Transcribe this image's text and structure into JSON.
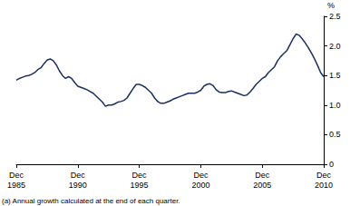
{
  "chart_data": {
    "type": "line",
    "ylabel": "%",
    "annotations": [
      "(a) Annual growth calculated at the end of each quarter."
    ],
    "categories": [
      "Dec 1985",
      null,
      null,
      null,
      null,
      null,
      null,
      null,
      null,
      null,
      null,
      null,
      null,
      null,
      null,
      null,
      null,
      null,
      null,
      null,
      "Dec 1990",
      null,
      null,
      null,
      null,
      null,
      null,
      null,
      null,
      null,
      null,
      null,
      null,
      null,
      null,
      null,
      null,
      null,
      null,
      null,
      "Dec 1995",
      null,
      null,
      null,
      null,
      null,
      null,
      null,
      null,
      null,
      null,
      null,
      null,
      null,
      null,
      null,
      null,
      null,
      null,
      null,
      "Dec 2000",
      null,
      null,
      null,
      null,
      null,
      null,
      null,
      null,
      null,
      null,
      null,
      null,
      null,
      null,
      null,
      null,
      null,
      null,
      null,
      "Dec 2005",
      null,
      null,
      null,
      null,
      null,
      null,
      null,
      null,
      null,
      null,
      null,
      null,
      null,
      null,
      null,
      null,
      null,
      null,
      null,
      "Dec 2010"
    ],
    "values": [
      1.42,
      1.45,
      1.47,
      1.49,
      1.5,
      1.52,
      1.55,
      1.6,
      1.63,
      1.7,
      1.76,
      1.78,
      1.75,
      1.68,
      1.58,
      1.5,
      1.45,
      1.48,
      1.45,
      1.38,
      1.32,
      1.3,
      1.28,
      1.26,
      1.23,
      1.2,
      1.15,
      1.1,
      1.05,
      0.98,
      1.0,
      1.0,
      1.02,
      1.05,
      1.06,
      1.08,
      1.12,
      1.2,
      1.28,
      1.35,
      1.35,
      1.33,
      1.3,
      1.25,
      1.2,
      1.12,
      1.06,
      1.03,
      1.03,
      1.05,
      1.07,
      1.1,
      1.12,
      1.14,
      1.16,
      1.18,
      1.2,
      1.2,
      1.2,
      1.22,
      1.25,
      1.32,
      1.35,
      1.36,
      1.33,
      1.26,
      1.22,
      1.21,
      1.21,
      1.23,
      1.24,
      1.22,
      1.2,
      1.18,
      1.16,
      1.17,
      1.22,
      1.28,
      1.35,
      1.4,
      1.45,
      1.48,
      1.55,
      1.6,
      1.65,
      1.75,
      1.82,
      1.87,
      1.92,
      2.02,
      2.12,
      2.2,
      2.18,
      2.12,
      2.05,
      1.97,
      1.88,
      1.78,
      1.67,
      1.55,
      1.48
    ],
    "color": "#1c2f5e",
    "ylim": [
      0,
      2.5
    ],
    "yticks": [
      0,
      0.5,
      {
        "value": 1,
        "label": "1.0"
      },
      1.5,
      {
        "value": 2,
        "label": "2.0"
      },
      2.5
    ],
    "grid": false
  }
}
